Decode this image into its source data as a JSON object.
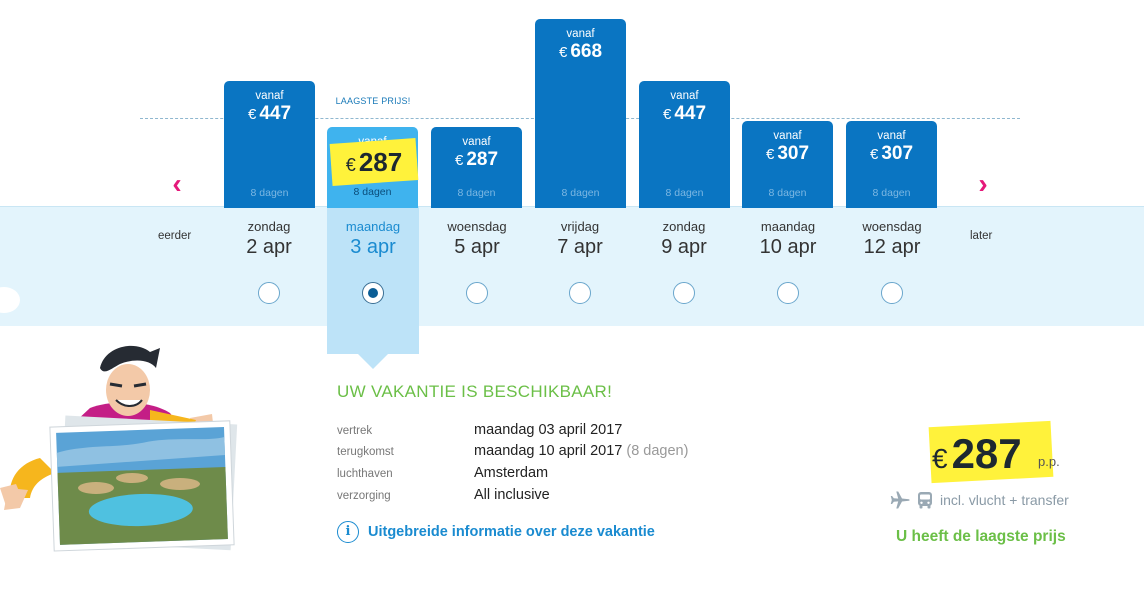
{
  "chart_data": {
    "type": "bar",
    "categories": [
      "2 apr",
      "3 apr",
      "5 apr",
      "7 apr",
      "9 apr",
      "10 apr",
      "12 apr"
    ],
    "values": [
      447,
      287,
      287,
      668,
      447,
      307,
      307
    ],
    "currency": "€",
    "price_prefix": "vanaf",
    "duration_label": "8 dagen",
    "lowest_label": "LAAGSTE PRIJS!",
    "selected_index": 1
  },
  "nav": {
    "earlier_label": "eerder",
    "later_label": "later"
  },
  "days": [
    {
      "weekday": "zondag",
      "date": "2 apr"
    },
    {
      "weekday": "maandag",
      "date": "3 apr"
    },
    {
      "weekday": "woensdag",
      "date": "5 apr"
    },
    {
      "weekday": "vrijdag",
      "date": "7 apr"
    },
    {
      "weekday": "zondag",
      "date": "9 apr"
    },
    {
      "weekday": "maandag",
      "date": "10 apr"
    },
    {
      "weekday": "woensdag",
      "date": "12 apr"
    }
  ],
  "details": {
    "headline": "UW VAKANTIE IS BESCHIKBAAR!",
    "departure_label": "vertrek",
    "departure_value": "maandag 03 april 2017",
    "return_label": "terugkomst",
    "return_value": "maandag 10 april 2017",
    "return_duration": "(8 dagen)",
    "airport_label": "luchthaven",
    "airport_value": "Amsterdam",
    "board_label": "verzorging",
    "board_value": "All inclusive",
    "info_link": "Uitgebreide informatie over deze vakantie"
  },
  "summary": {
    "currency": "€",
    "price": "287",
    "per_person": "p.p.",
    "included": "incl. vlucht + transfer",
    "lowest_message": "U heeft de laagste prijs"
  },
  "colors": {
    "bar": "#0a75c2",
    "bar_selected": "#3fb3ee",
    "highlight": "#fff23b",
    "accent_green": "#6bbf47",
    "accent_pink": "#e5197a",
    "link_blue": "#1a8bd0"
  }
}
